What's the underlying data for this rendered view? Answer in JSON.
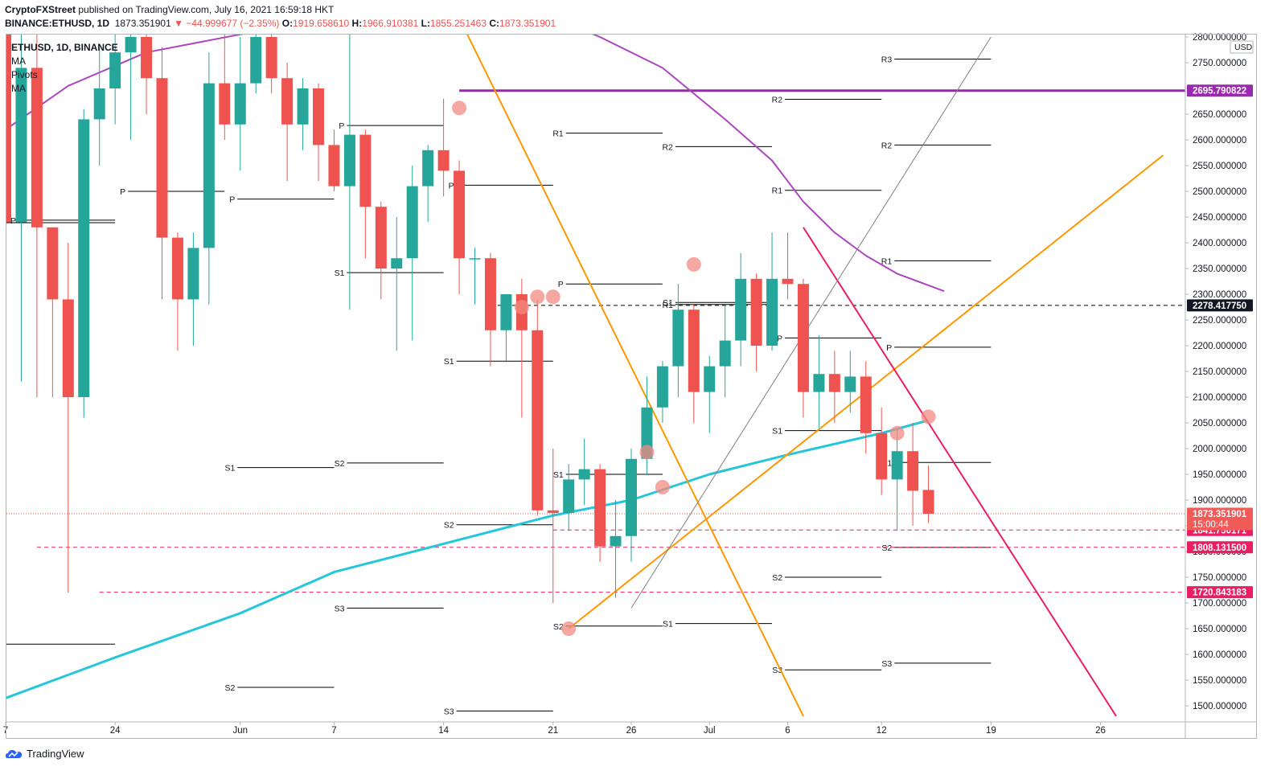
{
  "header": {
    "publisher": "CryptoFXStreet",
    "published_text": "published on TradingView.com, July 16, 2021 16:59:18 HKT",
    "symbol_line": "BINANCE:ETHUSD, 1D",
    "last": "1873.351901",
    "change": "▼ −44.999677 (−2.35%)",
    "o_label": "O:",
    "o": "1919.658610",
    "h_label": "H:",
    "h": "1966.910381",
    "l_label": "L:",
    "l": "1855.251463",
    "c_label": "C:",
    "c": "1873.351901"
  },
  "legend": {
    "title": "ETHUSD, 1D, BINANCE",
    "items": [
      "MA",
      "Pivots",
      "MA"
    ]
  },
  "footer": {
    "brand": "TradingView"
  },
  "colors": {
    "up": "#26a69a",
    "down": "#ef5350",
    "ma_fast": "#26c6da",
    "ma_slow": "#ab47bc",
    "trend_orange": "#ff9800",
    "trend_pink": "#e91e63",
    "resistance_purple": "#9c27b0"
  },
  "chart_data": {
    "type": "candlestick",
    "symbol": "ETHUSD",
    "timeframe": "1D",
    "exchange": "BINANCE",
    "currency": "USD",
    "ylim": [
      1470,
      2810
    ],
    "y_ticks": [
      1500,
      1550,
      1600,
      1650,
      1700,
      1750,
      1800,
      1850,
      1900,
      1950,
      2000,
      2050,
      2100,
      2150,
      2200,
      2250,
      2300,
      2350,
      2400,
      2450,
      2500,
      2550,
      2600,
      2650,
      2700,
      2750,
      2800
    ],
    "x_ticks": [
      {
        "i": 0,
        "label": "7"
      },
      {
        "i": 7,
        "label": "24"
      },
      {
        "i": 15,
        "label": "Jun"
      },
      {
        "i": 21,
        "label": "7"
      },
      {
        "i": 28,
        "label": "14"
      },
      {
        "i": 35,
        "label": "21"
      },
      {
        "i": 40,
        "label": "26"
      },
      {
        "i": 45,
        "label": "Jul"
      },
      {
        "i": 50,
        "label": "6"
      },
      {
        "i": 56,
        "label": "12"
      },
      {
        "i": 63,
        "label": "19"
      },
      {
        "i": 70,
        "label": "26"
      }
    ],
    "candles": [
      {
        "o": 3500,
        "h": 3600,
        "l": 1800,
        "c": 2440
      },
      {
        "o": 2440,
        "h": 3500,
        "l": 2130,
        "c": 2740
      },
      {
        "o": 2740,
        "h": 3000,
        "l": 2100,
        "c": 2430
      },
      {
        "o": 2430,
        "h": 2430,
        "l": 2100,
        "c": 2290
      },
      {
        "o": 2290,
        "h": 2400,
        "l": 1720,
        "c": 2100
      },
      {
        "o": 2100,
        "h": 2660,
        "l": 2060,
        "c": 2640
      },
      {
        "o": 2640,
        "h": 2780,
        "l": 2550,
        "c": 2700
      },
      {
        "o": 2700,
        "h": 2870,
        "l": 2630,
        "c": 2770
      },
      {
        "o": 2770,
        "h": 3000,
        "l": 2600,
        "c": 2800
      },
      {
        "o": 2800,
        "h": 2900,
        "l": 2650,
        "c": 2720
      },
      {
        "o": 2720,
        "h": 2780,
        "l": 2290,
        "c": 2410
      },
      {
        "o": 2410,
        "h": 2420,
        "l": 2190,
        "c": 2290
      },
      {
        "o": 2290,
        "h": 2420,
        "l": 2200,
        "c": 2390
      },
      {
        "o": 2390,
        "h": 2770,
        "l": 2280,
        "c": 2710
      },
      {
        "o": 2710,
        "h": 2820,
        "l": 2600,
        "c": 2630
      },
      {
        "o": 2630,
        "h": 2800,
        "l": 2540,
        "c": 2710
      },
      {
        "o": 2710,
        "h": 2830,
        "l": 2690,
        "c": 2800
      },
      {
        "o": 2800,
        "h": 2900,
        "l": 2690,
        "c": 2720
      },
      {
        "o": 2720,
        "h": 2750,
        "l": 2520,
        "c": 2630
      },
      {
        "o": 2630,
        "h": 2720,
        "l": 2580,
        "c": 2700
      },
      {
        "o": 2700,
        "h": 2710,
        "l": 2520,
        "c": 2590
      },
      {
        "o": 2590,
        "h": 2620,
        "l": 2500,
        "c": 2510
      },
      {
        "o": 2510,
        "h": 2840,
        "l": 2270,
        "c": 2610
      },
      {
        "o": 2610,
        "h": 2620,
        "l": 2370,
        "c": 2470
      },
      {
        "o": 2470,
        "h": 2480,
        "l": 2290,
        "c": 2350
      },
      {
        "o": 2350,
        "h": 2450,
        "l": 2190,
        "c": 2370
      },
      {
        "o": 2370,
        "h": 2550,
        "l": 2210,
        "c": 2510
      },
      {
        "o": 2510,
        "h": 2590,
        "l": 2440,
        "c": 2580
      },
      {
        "o": 2580,
        "h": 2680,
        "l": 2490,
        "c": 2540
      },
      {
        "o": 2540,
        "h": 2560,
        "l": 2300,
        "c": 2370
      },
      {
        "o": 2370,
        "h": 2390,
        "l": 2280,
        "c": 2370
      },
      {
        "o": 2370,
        "h": 2380,
        "l": 2160,
        "c": 2230
      },
      {
        "o": 2230,
        "h": 2290,
        "l": 2170,
        "c": 2300
      },
      {
        "o": 2300,
        "h": 2330,
        "l": 2060,
        "c": 2230
      },
      {
        "o": 2230,
        "h": 2290,
        "l": 1870,
        "c": 1880
      },
      {
        "o": 1880,
        "h": 2000,
        "l": 1700,
        "c": 1875
      },
      {
        "o": 1875,
        "h": 1970,
        "l": 1840,
        "c": 1940
      },
      {
        "o": 1940,
        "h": 2020,
        "l": 1890,
        "c": 1960
      },
      {
        "o": 1960,
        "h": 1970,
        "l": 1780,
        "c": 1810
      },
      {
        "o": 1810,
        "h": 1900,
        "l": 1710,
        "c": 1830
      },
      {
        "o": 1830,
        "h": 2000,
        "l": 1780,
        "c": 1980
      },
      {
        "o": 1980,
        "h": 2140,
        "l": 1950,
        "c": 2080
      },
      {
        "o": 2080,
        "h": 2170,
        "l": 2050,
        "c": 2160
      },
      {
        "o": 2160,
        "h": 2320,
        "l": 2100,
        "c": 2270
      },
      {
        "o": 2270,
        "h": 2280,
        "l": 2050,
        "c": 2110
      },
      {
        "o": 2110,
        "h": 2180,
        "l": 2030,
        "c": 2160
      },
      {
        "o": 2160,
        "h": 2280,
        "l": 2100,
        "c": 2210
      },
      {
        "o": 2210,
        "h": 2380,
        "l": 2160,
        "c": 2330
      },
      {
        "o": 2330,
        "h": 2340,
        "l": 2150,
        "c": 2200
      },
      {
        "o": 2200,
        "h": 2420,
        "l": 2190,
        "c": 2330
      },
      {
        "o": 2330,
        "h": 2420,
        "l": 2290,
        "c": 2320
      },
      {
        "o": 2320,
        "h": 2330,
        "l": 2060,
        "c": 2110
      },
      {
        "o": 2110,
        "h": 2220,
        "l": 2040,
        "c": 2145
      },
      {
        "o": 2145,
        "h": 2190,
        "l": 2050,
        "c": 2110
      },
      {
        "o": 2110,
        "h": 2190,
        "l": 2070,
        "c": 2140
      },
      {
        "o": 2140,
        "h": 2170,
        "l": 1990,
        "c": 2030
      },
      {
        "o": 2030,
        "h": 2080,
        "l": 1910,
        "c": 1940
      },
      {
        "o": 1940,
        "h": 2040,
        "l": 1840,
        "c": 1995
      },
      {
        "o": 1995,
        "h": 2050,
        "l": 1850,
        "c": 1918
      },
      {
        "o": 1919.66,
        "h": 1966.91,
        "l": 1855.25,
        "c": 1873.35
      }
    ],
    "ma_fast": [
      {
        "i": 0,
        "v": 1515
      },
      {
        "i": 7,
        "v": 1594
      },
      {
        "i": 15,
        "v": 1680
      },
      {
        "i": 21,
        "v": 1760
      },
      {
        "i": 28,
        "v": 1815
      },
      {
        "i": 35,
        "v": 1870
      },
      {
        "i": 40,
        "v": 1900
      },
      {
        "i": 45,
        "v": 1950
      },
      {
        "i": 50,
        "v": 1988
      },
      {
        "i": 56,
        "v": 2030
      },
      {
        "i": 59,
        "v": 2055
      }
    ],
    "ma_slow": [
      {
        "i": 0,
        "v": 2620
      },
      {
        "i": 4,
        "v": 2705
      },
      {
        "i": 9,
        "v": 2770
      },
      {
        "i": 15,
        "v": 2805
      },
      {
        "i": 20,
        "v": 2835
      },
      {
        "i": 30,
        "v": 2900
      },
      {
        "i": 38,
        "v": 2800
      },
      {
        "i": 42,
        "v": 2740
      },
      {
        "i": 46,
        "v": 2640
      },
      {
        "i": 49,
        "v": 2560
      },
      {
        "i": 51,
        "v": 2480
      },
      {
        "i": 53,
        "v": 2420
      },
      {
        "i": 55,
        "v": 2375
      },
      {
        "i": 57,
        "v": 2340
      },
      {
        "i": 60,
        "v": 2306
      }
    ],
    "lines": [
      {
        "name": "descending-orange-trendline",
        "color": "#ff9800",
        "points": [
          {
            "i": 27,
            "v": 2960
          },
          {
            "i": 51,
            "v": 1480
          }
        ]
      },
      {
        "name": "ascending-orange-trendline",
        "color": "#ff9800",
        "points": [
          {
            "i": 36,
            "v": 1650
          },
          {
            "i": 74,
            "v": 2570
          }
        ]
      },
      {
        "name": "descending-pink-trendline",
        "color": "#e91e63",
        "points": [
          {
            "i": 51,
            "v": 2430
          },
          {
            "i": 71,
            "v": 1480
          }
        ]
      },
      {
        "name": "gray-channel-line",
        "color": "#808080",
        "points": [
          {
            "i": 40,
            "v": 1690
          },
          {
            "i": 63,
            "v": 2800
          }
        ]
      }
    ],
    "levels": [
      {
        "name": "resistance-2695",
        "color": "#9c27b0",
        "value": 2695.790822,
        "from_i": 29,
        "label": "2695.790822",
        "style": "solid"
      },
      {
        "name": "level-2278",
        "color": "#000000",
        "value": 2278.41775,
        "from_i": 31,
        "label": "2278.417750",
        "style": "dashed"
      },
      {
        "name": "level-1841",
        "color": "#e91e63",
        "value": 1841.750171,
        "from_i": 35,
        "label": "1841.750171",
        "style": "dashed"
      },
      {
        "name": "level-1808",
        "color": "#e91e63",
        "value": 1808.1315,
        "from_i": 2,
        "label": "1808.131500",
        "style": "dashed"
      },
      {
        "name": "level-1720",
        "color": "#e91e63",
        "value": 1720.843183,
        "from_i": 6,
        "label": "1720.843183",
        "style": "dashed"
      }
    ],
    "last_price": {
      "value": 1873.351901,
      "label": "1873.351901",
      "countdown": "15:00:44"
    },
    "pivots": [
      {
        "label": "P",
        "v": 2444,
        "i0": 0,
        "i1": 7
      },
      {
        "label": "P",
        "v": 2500,
        "i0": 7,
        "i1": 14
      },
      {
        "label": "P",
        "v": 2485,
        "i0": 14,
        "i1": 21
      },
      {
        "label": "P",
        "v": 2628,
        "i0": 21,
        "i1": 28
      },
      {
        "label": "P",
        "v": 2512,
        "i0": 28,
        "i1": 35
      },
      {
        "label": "P",
        "v": 2320,
        "i0": 35,
        "i1": 42
      },
      {
        "label": "P",
        "v": 2215,
        "i0": 49,
        "i1": 56
      },
      {
        "label": "P",
        "v": 2197,
        "i0": 56,
        "i1": 63
      },
      {
        "label": "S1",
        "v": 1963,
        "i0": 14,
        "i1": 21
      },
      {
        "label": "S1",
        "v": 2342,
        "i0": 21,
        "i1": 28
      },
      {
        "label": "S1",
        "v": 2170,
        "i0": 28,
        "i1": 35
      },
      {
        "label": "S1",
        "v": 1950,
        "i0": 35,
        "i1": 42
      },
      {
        "label": "S1",
        "v": 2284,
        "i0": 42,
        "i1": 49
      },
      {
        "label": "S1",
        "v": 1660,
        "i0": 42,
        "i1": 49
      },
      {
        "label": "S1",
        "v": 2035,
        "i0": 49,
        "i1": 56
      },
      {
        "label": "S1",
        "v": 1973,
        "i0": 56,
        "i1": 63
      },
      {
        "label": "S2",
        "v": 1536,
        "i0": 14,
        "i1": 21
      },
      {
        "label": "S2",
        "v": 1972,
        "i0": 21,
        "i1": 28
      },
      {
        "label": "S2",
        "v": 1852,
        "i0": 28,
        "i1": 35
      },
      {
        "label": "S2",
        "v": 1655,
        "i0": 35,
        "i1": 42
      },
      {
        "label": "S2",
        "v": 1750,
        "i0": 49,
        "i1": 56
      },
      {
        "label": "S2",
        "v": 1808,
        "i0": 56,
        "i1": 63
      },
      {
        "label": "S3",
        "v": 1690,
        "i0": 21,
        "i1": 28
      },
      {
        "label": "S3",
        "v": 1490,
        "i0": 28,
        "i1": 35
      },
      {
        "label": "S3",
        "v": 1570,
        "i0": 49,
        "i1": 56
      },
      {
        "label": "S3",
        "v": 1583,
        "i0": 56,
        "i1": 63
      },
      {
        "label": "R1",
        "v": 2613,
        "i0": 35,
        "i1": 42
      },
      {
        "label": "R1",
        "v": 2280,
        "i0": 42,
        "i1": 49
      },
      {
        "label": "R1",
        "v": 2502,
        "i0": 49,
        "i1": 56
      },
      {
        "label": "R1",
        "v": 2365,
        "i0": 56,
        "i1": 63
      },
      {
        "label": "R2",
        "v": 2587,
        "i0": 42,
        "i1": 49
      },
      {
        "label": "R2",
        "v": 2679,
        "i0": 49,
        "i1": 56
      },
      {
        "label": "R2",
        "v": 2590,
        "i0": 56,
        "i1": 63
      },
      {
        "label": "R3",
        "v": 2757,
        "i0": 56,
        "i1": 63
      }
    ],
    "extra_segments": [
      {
        "v": 2439,
        "i0": 0,
        "i1": 7
      },
      {
        "v": 1620,
        "i0": 0,
        "i1": 7
      }
    ],
    "markers": [
      {
        "i": 29,
        "v": 2662
      },
      {
        "i": 33,
        "v": 2275
      },
      {
        "i": 34,
        "v": 2295
      },
      {
        "i": 35,
        "v": 2295
      },
      {
        "i": 36,
        "v": 1650
      },
      {
        "i": 41,
        "v": 1993
      },
      {
        "i": 42,
        "v": 1925
      },
      {
        "i": 44,
        "v": 2358
      },
      {
        "i": 57,
        "v": 2030
      },
      {
        "i": 59,
        "v": 2062
      }
    ]
  }
}
